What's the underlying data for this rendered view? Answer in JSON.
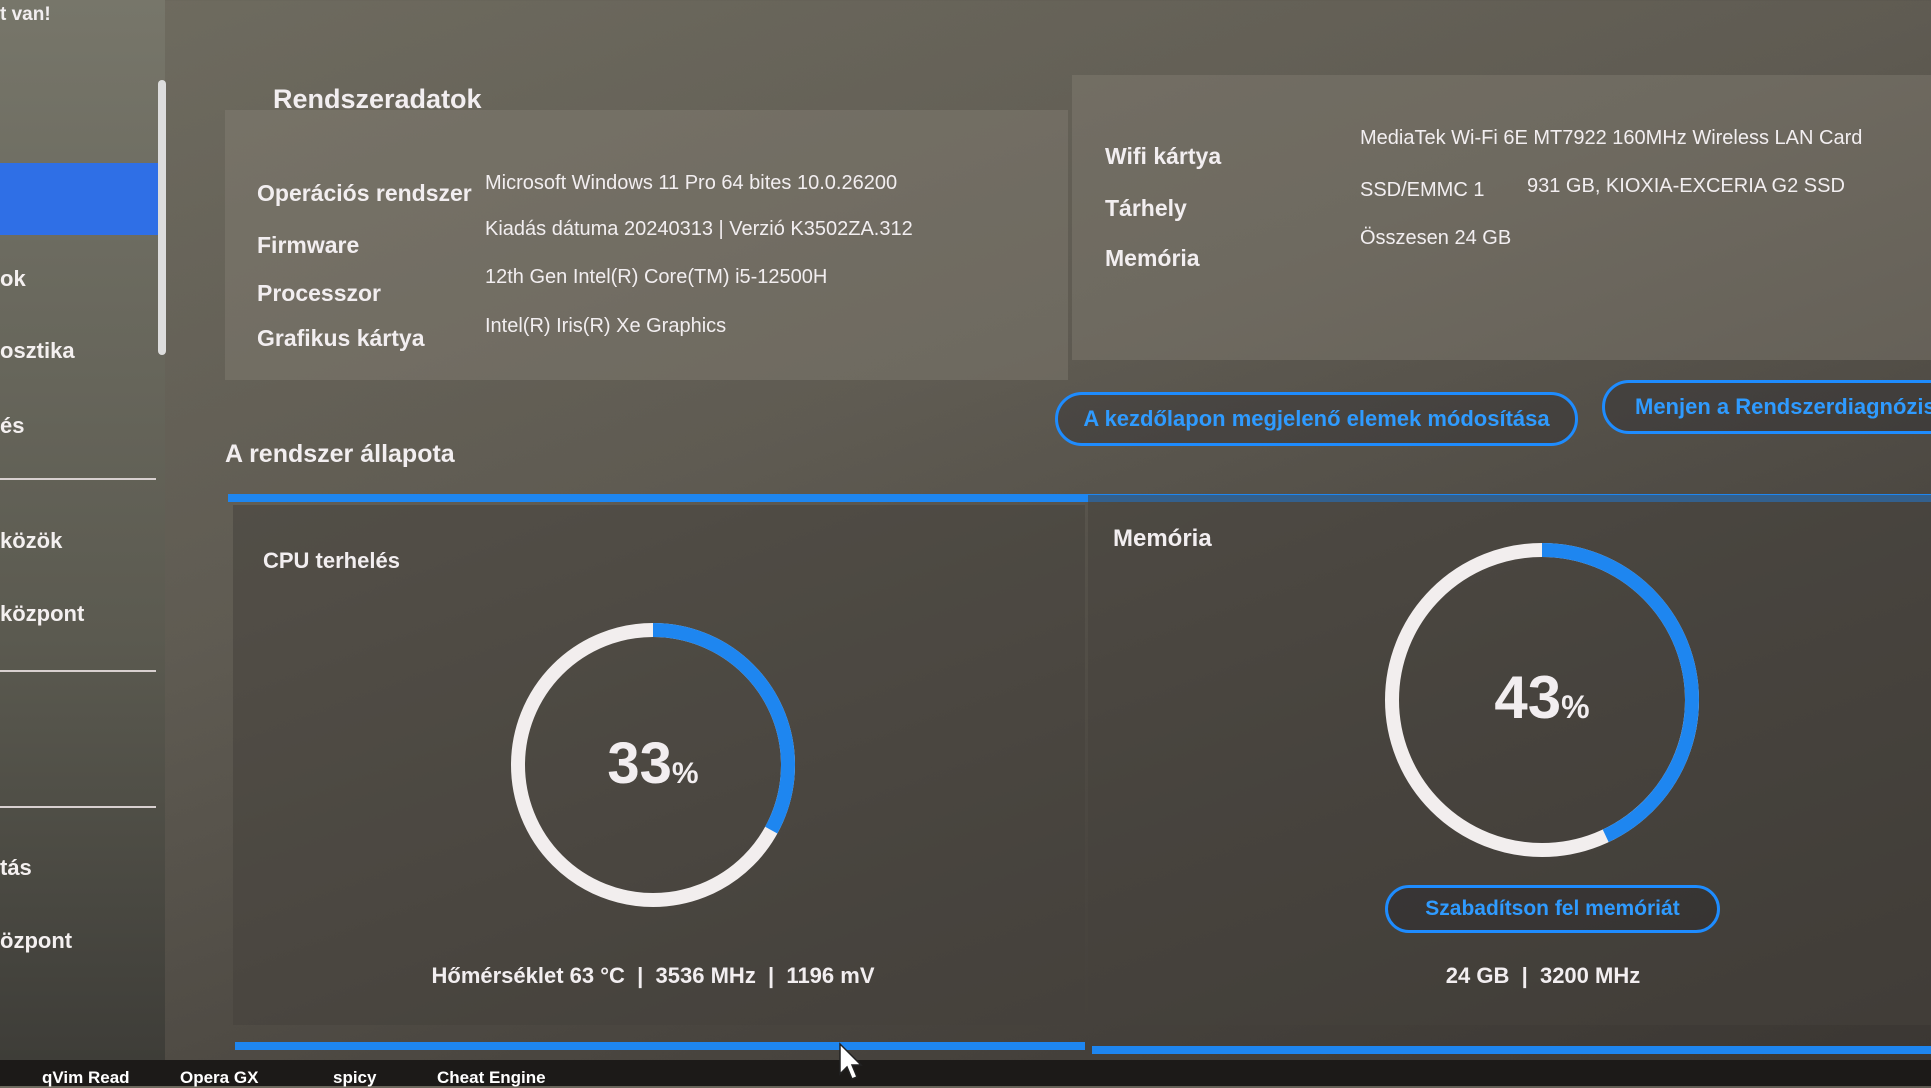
{
  "top_notice": "t van!",
  "sidebar": {
    "items": [
      {
        "label": ""
      },
      {
        "label": "ok"
      },
      {
        "label": "osztika"
      },
      {
        "label": "és"
      },
      {
        "label": "közök"
      },
      {
        "label": "központ"
      },
      {
        "label": "tás"
      },
      {
        "label": "özpont"
      }
    ]
  },
  "system_info": {
    "title": "Rendszeradatok",
    "left": [
      {
        "label": "Operációs rendszer",
        "value": "Microsoft Windows 11 Pro 64 bites 10.0.26200"
      },
      {
        "label": "Firmware",
        "value": "Kiadás dátuma 20240313 | Verzió K3502ZA.312"
      },
      {
        "label": "Processzor",
        "value": "12th Gen Intel(R) Core(TM) i5-12500H"
      },
      {
        "label": "Grafikus kártya",
        "value": "Intel(R) Iris(R) Xe Graphics"
      }
    ],
    "right": [
      {
        "label": "Wifi kártya",
        "value": "MediaTek Wi-Fi 6E MT7922 160MHz Wireless LAN Card"
      },
      {
        "label": "Tárhely",
        "value": "SSD/EMMC 1",
        "value2": "931 GB, KIOXIA-EXCERIA G2 SSD"
      },
      {
        "label": "Memória",
        "value": "Összesen 24 GB"
      }
    ]
  },
  "status": {
    "title": "A rendszer állapota",
    "edit_button": "A kezdőlapon megjelenő elemek módosítása",
    "diag_button": "Menjen a Rendszerdiagnózishoz",
    "cpu": {
      "title": "CPU terhelés",
      "percent": 33,
      "value": "33",
      "unit": "%",
      "stats": "Hőmérséklet 63 °C  |  3536 MHz  |  1196 mV"
    },
    "memory": {
      "title": "Memória",
      "percent": 43,
      "value": "43",
      "unit": "%",
      "free_button": "Szabadítson fel memóriát",
      "stats": "24 GB  |  3200 MHz"
    }
  },
  "taskbar": {
    "items": [
      "qVim Read",
      "Opera GX",
      "spicy",
      "Cheat Engine"
    ]
  },
  "colors": {
    "accent": "#1e86f0",
    "selected": "#2f6fe6"
  }
}
